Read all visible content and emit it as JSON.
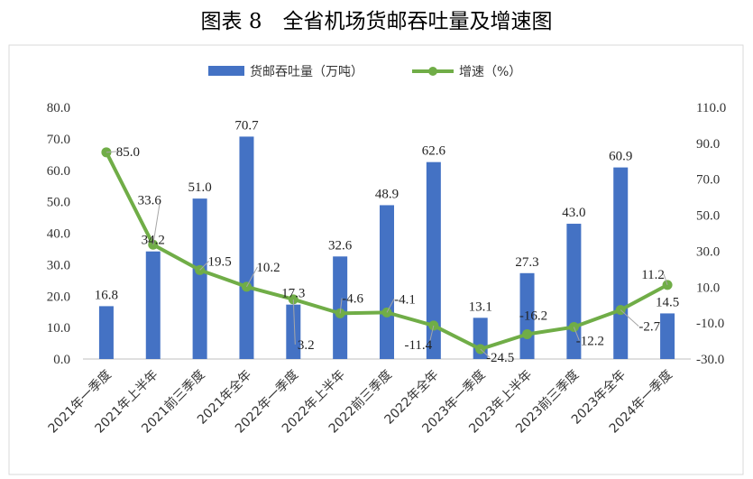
{
  "title": "图表 8　全省机场货邮吞吐量及增速图",
  "chart_data": {
    "type": "bar",
    "categories": [
      "2021年一季度",
      "2021年上半年",
      "2021前三季度",
      "2021年全年",
      "2022年一季度",
      "2022年上半年",
      "2022前三季度",
      "2022年全年",
      "2023年一季度",
      "2023年上半年",
      "2023前三季度",
      "2023年全年",
      "2024年一季度"
    ],
    "series": [
      {
        "name": "货邮吞吐量（万吨）",
        "type": "bar",
        "axis": "left",
        "color": "#4472C4",
        "values": [
          16.8,
          34.2,
          51.0,
          70.7,
          17.3,
          32.6,
          48.9,
          62.6,
          13.1,
          27.3,
          43.0,
          60.9,
          14.5
        ],
        "labels": [
          "16.8",
          "34.2",
          "51.0",
          "70.7",
          "17.3",
          "32.6",
          "48.9",
          "62.6",
          "13.1",
          "27.3",
          "43.0",
          "60.9",
          "14.5"
        ]
      },
      {
        "name": "增速（%）",
        "type": "line",
        "axis": "right",
        "color": "#70AD47",
        "values": [
          85.0,
          33.6,
          19.5,
          10.2,
          3.2,
          -4.6,
          -4.1,
          -11.4,
          -24.5,
          -16.2,
          -12.2,
          -2.7,
          11.2
        ],
        "labels": [
          "85.0",
          "33.6",
          "19.5",
          "10.2",
          "3.2",
          "-4.6",
          "-4.1",
          "-11.4",
          "-24.5",
          "-16.2",
          "-12.2",
          "-2.7",
          "11.2"
        ]
      }
    ],
    "y_left": {
      "range": [
        0,
        80
      ],
      "ticks": [
        "0.0",
        "10.0",
        "20.0",
        "30.0",
        "40.0",
        "50.0",
        "60.0",
        "70.0",
        "80.0"
      ]
    },
    "y_right": {
      "range": [
        -30,
        110
      ],
      "ticks": [
        "-30.0",
        "-10.0",
        "10.0",
        "30.0",
        "50.0",
        "70.0",
        "90.0",
        "110.0"
      ]
    },
    "legend_position": "top",
    "grid": false
  }
}
